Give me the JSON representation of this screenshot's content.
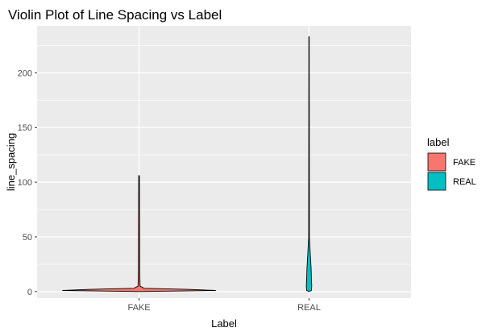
{
  "chart_data": {
    "type": "violin",
    "title": "Violin Plot of Line Spacing vs Label",
    "xlabel": "Label",
    "ylabel": "line_spacing",
    "categories": [
      "FAKE",
      "REAL"
    ],
    "ylim": [
      -6,
      243
    ],
    "y_ticks": [
      0,
      50,
      100,
      150,
      200
    ],
    "grid": true,
    "legend": {
      "title": "label",
      "position": "right",
      "entries": [
        {
          "label": "FAKE",
          "color": "#F8766D"
        },
        {
          "label": "REAL",
          "color": "#00BFC4"
        }
      ]
    },
    "series": [
      {
        "category": "FAKE",
        "color": "#F8766D",
        "y_range": [
          0,
          106
        ],
        "density_profile": [
          {
            "y": 0,
            "half_width": 0.0
          },
          {
            "y": 1,
            "half_width": 0.45
          },
          {
            "y": 2,
            "half_width": 0.3
          },
          {
            "y": 3,
            "half_width": 0.03
          },
          {
            "y": 5,
            "half_width": 0.006
          },
          {
            "y": 20,
            "half_width": 0.004
          },
          {
            "y": 33,
            "half_width": 0.004
          },
          {
            "y": 106,
            "half_width": 0.002
          }
        ]
      },
      {
        "category": "REAL",
        "color": "#00BFC4",
        "y_range": [
          0,
          233
        ],
        "density_profile": [
          {
            "y": 0,
            "half_width": 0.0
          },
          {
            "y": 1,
            "half_width": 0.014
          },
          {
            "y": 5,
            "half_width": 0.016
          },
          {
            "y": 12,
            "half_width": 0.014
          },
          {
            "y": 22,
            "half_width": 0.012
          },
          {
            "y": 27,
            "half_width": 0.01
          },
          {
            "y": 35,
            "half_width": 0.007
          },
          {
            "y": 45,
            "half_width": 0.004
          },
          {
            "y": 50,
            "half_width": 0.002
          },
          {
            "y": 233,
            "half_width": 0.001
          }
        ]
      }
    ]
  },
  "colors": {
    "panel_background": "#EBEBEB",
    "grid_major": "#FFFFFF",
    "outline": "#000000"
  }
}
